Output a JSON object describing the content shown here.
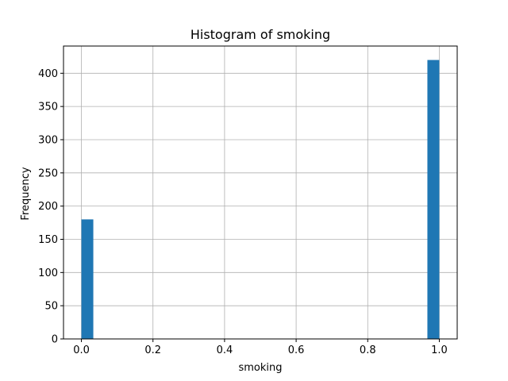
{
  "chart_data": {
    "type": "bar",
    "title": "Histogram of smoking",
    "xlabel": "smoking",
    "ylabel": "Frequency",
    "xlim": [
      -0.05,
      1.05
    ],
    "ylim": [
      0,
      441
    ],
    "xticks": [
      0.0,
      0.2,
      0.4,
      0.6,
      0.8,
      1.0
    ],
    "xtick_labels": [
      "0.0",
      "0.2",
      "0.4",
      "0.6",
      "0.8",
      "1.0"
    ],
    "yticks": [
      0,
      50,
      100,
      150,
      200,
      250,
      300,
      350,
      400
    ],
    "ytick_labels": [
      "0",
      "50",
      "100",
      "150",
      "200",
      "250",
      "300",
      "350",
      "400"
    ],
    "grid": true,
    "bar_color": "#1f77b4",
    "bins": [
      {
        "x0": 0.0,
        "x1": 0.0333,
        "value": 180
      },
      {
        "x0": 0.9667,
        "x1": 1.0,
        "value": 420
      }
    ]
  }
}
